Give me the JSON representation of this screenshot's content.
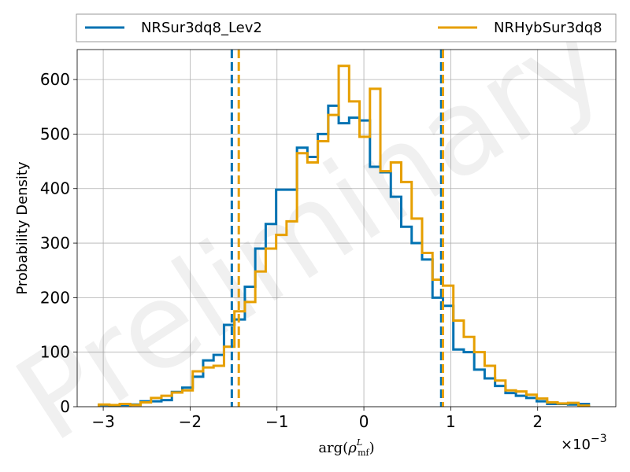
{
  "chart_data": {
    "type": "histogram",
    "xlabel": "arg(ρ_mf^L)",
    "xlabel_parts": {
      "base": "arg(",
      "rho": "ρ",
      "sub": "mf",
      "sup": "L",
      "close": ")"
    },
    "ylabel": "Probability Density",
    "x_scale_note": {
      "prefix": "×10",
      "exponent": "−3"
    },
    "watermark": "Preliminary",
    "xlim": [
      -3.3,
      2.9
    ],
    "ylim": [
      0,
      655
    ],
    "xticks": [
      -3,
      -2,
      -1,
      0,
      1,
      2
    ],
    "xtick_labels": [
      "−3",
      "−2",
      "−1",
      "0",
      "1",
      "2"
    ],
    "yticks": [
      0,
      100,
      200,
      300,
      400,
      500,
      600
    ],
    "ytick_labels": [
      "0",
      "100",
      "200",
      "300",
      "400",
      "500",
      "600"
    ],
    "grid": true,
    "legend_placement": "top, outside plot, two columns",
    "series": [
      {
        "name": "NRSur3dq8_Lev2",
        "color": "#0072B2",
        "bin_edges": [
          -3.05,
          -2.93,
          -2.81,
          -2.69,
          -2.57,
          -2.45,
          -2.33,
          -2.21,
          -2.09,
          -1.97,
          -1.85,
          -1.73,
          -1.61,
          -1.49,
          -1.37,
          -1.25,
          -1.13,
          -1.01,
          -0.89,
          -0.77,
          -0.65,
          -0.53,
          -0.41,
          -0.29,
          -0.17,
          -0.05,
          0.07,
          0.19,
          0.31,
          0.43,
          0.55,
          0.67,
          0.79,
          0.91,
          1.03,
          1.15,
          1.27,
          1.39,
          1.51,
          1.63,
          1.75,
          1.87,
          1.99,
          2.11,
          2.23,
          2.35,
          2.47,
          2.59
        ],
        "densities": [
          3,
          2,
          3,
          4,
          10,
          10,
          12,
          27,
          35,
          55,
          85,
          95,
          150,
          160,
          220,
          290,
          335,
          398,
          398,
          475,
          458,
          500,
          552,
          520,
          530,
          525,
          440,
          430,
          385,
          330,
          300,
          270,
          200,
          185,
          105,
          100,
          68,
          52,
          38,
          25,
          20,
          16,
          10,
          5,
          5,
          4,
          5
        ],
        "credible_interval": [
          -1.52,
          0.89
        ]
      },
      {
        "name": "NRHybSur3dq8",
        "color": "#E69F00",
        "bin_edges": [
          -3.05,
          -2.93,
          -2.81,
          -2.69,
          -2.57,
          -2.45,
          -2.33,
          -2.21,
          -2.09,
          -1.97,
          -1.85,
          -1.73,
          -1.61,
          -1.49,
          -1.37,
          -1.25,
          -1.13,
          -1.01,
          -0.89,
          -0.77,
          -0.65,
          -0.53,
          -0.41,
          -0.29,
          -0.17,
          -0.05,
          0.07,
          0.19,
          0.31,
          0.43,
          0.55,
          0.67,
          0.79,
          0.91,
          1.03,
          1.15,
          1.27,
          1.39,
          1.51,
          1.63,
          1.75,
          1.87,
          1.99,
          2.11,
          2.23,
          2.35,
          2.47,
          2.59
        ],
        "densities": [
          4,
          3,
          5,
          3,
          8,
          16,
          20,
          26,
          30,
          65,
          72,
          75,
          110,
          175,
          192,
          248,
          290,
          315,
          340,
          465,
          448,
          487,
          535,
          625,
          560,
          495,
          583,
          432,
          448,
          412,
          345,
          282,
          233,
          222,
          158,
          128,
          100,
          75,
          48,
          30,
          28,
          22,
          15,
          8,
          6,
          7,
          2
        ],
        "credible_interval": [
          -1.44,
          0.91
        ]
      }
    ]
  }
}
